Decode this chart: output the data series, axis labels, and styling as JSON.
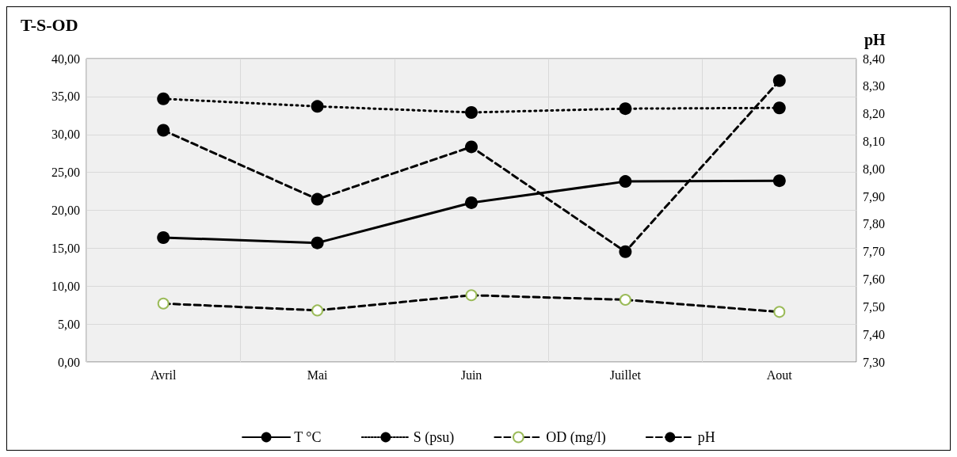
{
  "chart_data": {
    "type": "line",
    "title": "T-S-OD",
    "y2label": "pH",
    "categories": [
      "Avril",
      "Mai",
      "Juin",
      "Juillet",
      "Aout"
    ],
    "series": [
      {
        "name": "T °C",
        "color": "#000000",
        "line_style": "solid",
        "values": [
          16.4,
          15.7,
          21.0,
          23.8,
          23.9
        ]
      },
      {
        "name": "S (psu)",
        "color": "#000000",
        "line_style": "dotted",
        "values": [
          34.7,
          33.7,
          32.9,
          33.4,
          33.5
        ]
      },
      {
        "name": "OD (mg/l)",
        "color": "#9bbb59",
        "line_style": "dashed",
        "values": [
          7.7,
          6.8,
          8.8,
          8.2,
          6.6
        ]
      },
      {
        "name": "pH",
        "color": "#000000",
        "line_style": "dashed",
        "axis": "y2",
        "values": [
          8.14,
          7.89,
          8.08,
          7.7,
          8.32
        ]
      }
    ],
    "ylim": [
      0,
      40
    ],
    "yticks": [
      {
        "value": 0,
        "label": "0,00"
      },
      {
        "value": 5,
        "label": "5,00"
      },
      {
        "value": 10,
        "label": "10,00"
      },
      {
        "value": 15,
        "label": "15,00"
      },
      {
        "value": 20,
        "label": "20,00"
      },
      {
        "value": 25,
        "label": "25,00"
      },
      {
        "value": 30,
        "label": "30,00"
      },
      {
        "value": 35,
        "label": "35,00"
      },
      {
        "value": 40,
        "label": "40,00"
      }
    ],
    "y2lim": [
      7.3,
      8.4
    ],
    "y2ticks": [
      {
        "value": 7.3,
        "label": "7,30"
      },
      {
        "value": 7.4,
        "label": "7,40"
      },
      {
        "value": 7.5,
        "label": "7,50"
      },
      {
        "value": 7.6,
        "label": "7,60"
      },
      {
        "value": 7.7,
        "label": "7,70"
      },
      {
        "value": 7.8,
        "label": "7,80"
      },
      {
        "value": 7.9,
        "label": "7,90"
      },
      {
        "value": 8.0,
        "label": "8,00"
      },
      {
        "value": 8.1,
        "label": "8,10"
      },
      {
        "value": 8.2,
        "label": "8,20"
      },
      {
        "value": 8.3,
        "label": "8,30"
      },
      {
        "value": 8.4,
        "label": "8,40"
      }
    ],
    "grid": true,
    "legend": "bottom",
    "marker": "circle"
  }
}
